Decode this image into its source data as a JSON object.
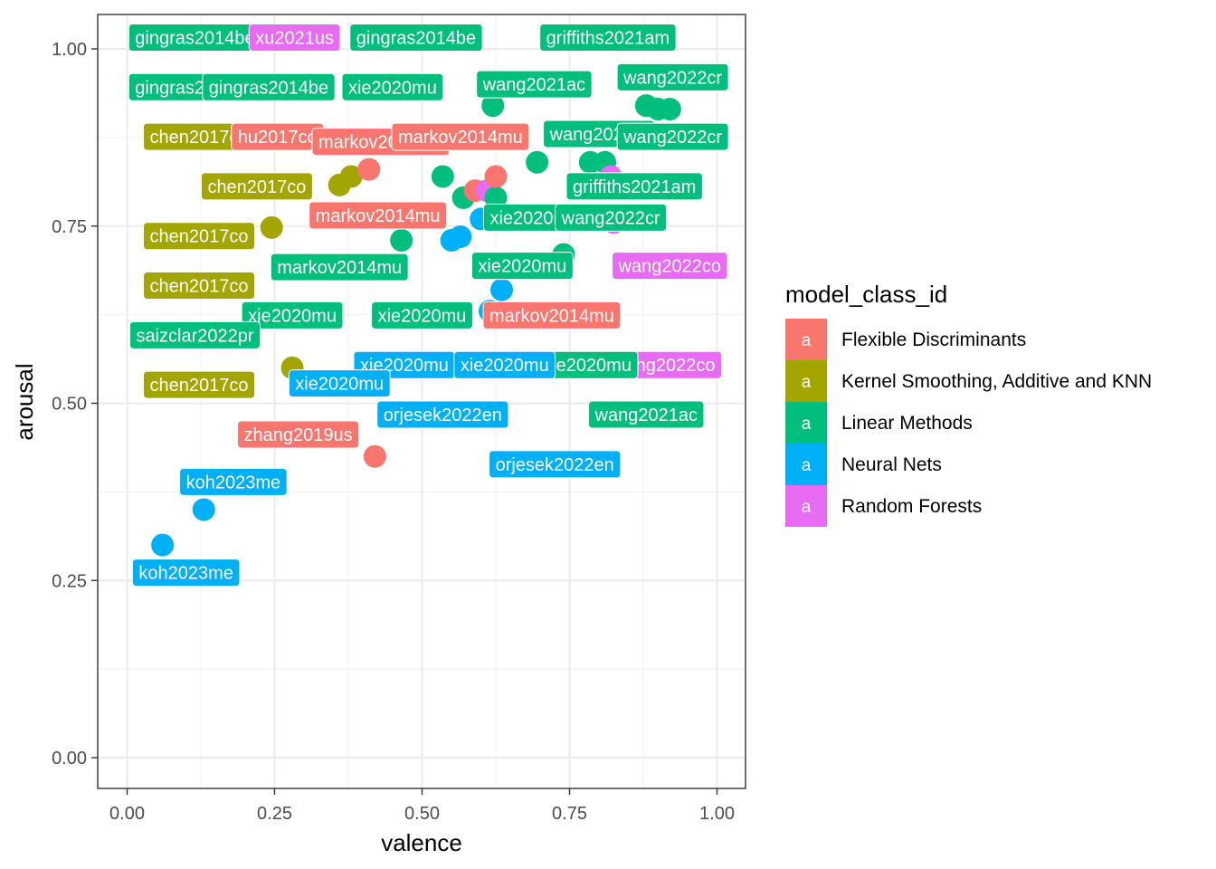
{
  "chart_data": {
    "type": "scatter",
    "xlabel": "valence",
    "ylabel": "arousal",
    "xlim": [
      0,
      1
    ],
    "ylim": [
      0,
      1
    ],
    "xticks": [
      "0.00",
      "0.25",
      "0.50",
      "0.75",
      "1.00"
    ],
    "yticks": [
      "0.00",
      "0.25",
      "0.50",
      "0.75",
      "1.00"
    ],
    "grid": true,
    "legend": {
      "title": "model_class_id",
      "placement": "right",
      "key_glyph": "a",
      "entries": [
        {
          "name": "Flexible Discriminants",
          "color": "#F8766D"
        },
        {
          "name": "Kernel Smoothing, Additive and KNN",
          "color": "#A3A500"
        },
        {
          "name": "Linear Methods",
          "color": "#00BF7D"
        },
        {
          "name": "Neural Nets",
          "color": "#00B0F6"
        },
        {
          "name": "Random Forests",
          "color": "#E76BF3"
        }
      ]
    },
    "points": [
      {
        "x": 0.06,
        "y": 0.3,
        "cls": 3
      },
      {
        "x": 0.13,
        "y": 0.35,
        "cls": 3
      },
      {
        "x": 0.42,
        "y": 0.425,
        "cls": 0
      },
      {
        "x": 0.28,
        "y": 0.55,
        "cls": 1
      },
      {
        "x": 0.245,
        "y": 0.748,
        "cls": 1
      },
      {
        "x": 0.36,
        "y": 0.808,
        "cls": 1
      },
      {
        "x": 0.38,
        "y": 0.82,
        "cls": 1
      },
      {
        "x": 0.41,
        "y": 0.83,
        "cls": 0
      },
      {
        "x": 0.465,
        "y": 0.73,
        "cls": 2
      },
      {
        "x": 0.535,
        "y": 0.82,
        "cls": 2
      },
      {
        "x": 0.55,
        "y": 0.73,
        "cls": 3
      },
      {
        "x": 0.565,
        "y": 0.735,
        "cls": 3
      },
      {
        "x": 0.57,
        "y": 0.79,
        "cls": 2
      },
      {
        "x": 0.6,
        "y": 0.76,
        "cls": 3
      },
      {
        "x": 0.59,
        "y": 0.8,
        "cls": 0
      },
      {
        "x": 0.61,
        "y": 0.8,
        "cls": 4
      },
      {
        "x": 0.625,
        "y": 0.79,
        "cls": 2
      },
      {
        "x": 0.62,
        "y": 0.92,
        "cls": 2
      },
      {
        "x": 0.625,
        "y": 0.82,
        "cls": 0
      },
      {
        "x": 0.615,
        "y": 0.63,
        "cls": 3
      },
      {
        "x": 0.635,
        "y": 0.66,
        "cls": 3
      },
      {
        "x": 0.695,
        "y": 0.84,
        "cls": 2
      },
      {
        "x": 0.74,
        "y": 0.71,
        "cls": 2
      },
      {
        "x": 0.785,
        "y": 0.84,
        "cls": 2
      },
      {
        "x": 0.81,
        "y": 0.84,
        "cls": 2
      },
      {
        "x": 0.82,
        "y": 0.82,
        "cls": 4
      },
      {
        "x": 0.825,
        "y": 0.755,
        "cls": 4
      },
      {
        "x": 0.88,
        "y": 0.92,
        "cls": 2
      },
      {
        "x": 0.9,
        "y": 0.915,
        "cls": 2
      },
      {
        "x": 0.92,
        "y": 0.915,
        "cls": 2
      }
    ],
    "labels": [
      {
        "text": "gingras2014be",
        "x": 0.115,
        "y": 1.016,
        "cls": 2
      },
      {
        "text": "xu2021us",
        "x": 0.284,
        "y": 1.016,
        "cls": 4
      },
      {
        "text": "gingras2014be",
        "x": 0.49,
        "y": 1.016,
        "cls": 2
      },
      {
        "text": "griffiths2021am",
        "x": 0.815,
        "y": 1.016,
        "cls": 2
      },
      {
        "text": "gingras2014be",
        "x": 0.115,
        "y": 0.946,
        "cls": 2
      },
      {
        "text": "gingras2014be",
        "x": 0.24,
        "y": 0.946,
        "cls": 2
      },
      {
        "text": "xie2020mu",
        "x": 0.45,
        "y": 0.946,
        "cls": 2
      },
      {
        "text": "wang2021ac",
        "x": 0.69,
        "y": 0.95,
        "cls": 2
      },
      {
        "text": "wang2022cr",
        "x": 0.925,
        "y": 0.96,
        "cls": 2
      },
      {
        "text": "chen2017co",
        "x": 0.122,
        "y": 0.876,
        "cls": 1
      },
      {
        "text": "hu2017co",
        "x": 0.255,
        "y": 0.876,
        "cls": 0
      },
      {
        "text": "markov2014mu",
        "x": 0.43,
        "y": 0.869,
        "cls": 0
      },
      {
        "text": "markov2014mu",
        "x": 0.565,
        "y": 0.876,
        "cls": 0
      },
      {
        "text": "wang2022cr",
        "x": 0.8,
        "y": 0.88,
        "cls": 2
      },
      {
        "text": "wang2022cr",
        "x": 0.925,
        "y": 0.876,
        "cls": 2
      },
      {
        "text": "chen2017co",
        "x": 0.22,
        "y": 0.806,
        "cls": 1
      },
      {
        "text": "griffiths2021am",
        "x": 0.86,
        "y": 0.806,
        "cls": 2
      },
      {
        "text": "markov2014mu",
        "x": 0.425,
        "y": 0.765,
        "cls": 0
      },
      {
        "text": "xie2020mu",
        "x": 0.69,
        "y": 0.762,
        "cls": 2
      },
      {
        "text": "wang2022cr",
        "x": 0.82,
        "y": 0.762,
        "cls": 2
      },
      {
        "text": "chen2017co",
        "x": 0.122,
        "y": 0.736,
        "cls": 1
      },
      {
        "text": "markov2014mu",
        "x": 0.36,
        "y": 0.692,
        "cls": 2
      },
      {
        "text": "xie2020mu",
        "x": 0.67,
        "y": 0.694,
        "cls": 2
      },
      {
        "text": "wang2022co",
        "x": 0.92,
        "y": 0.694,
        "cls": 4
      },
      {
        "text": "chen2017co",
        "x": 0.122,
        "y": 0.666,
        "cls": 1
      },
      {
        "text": "xie2020mu",
        "x": 0.28,
        "y": 0.624,
        "cls": 2
      },
      {
        "text": "xie2020mu",
        "x": 0.5,
        "y": 0.624,
        "cls": 2
      },
      {
        "text": "markov2014mu",
        "x": 0.72,
        "y": 0.624,
        "cls": 0
      },
      {
        "text": "saizclar2022pr",
        "x": 0.115,
        "y": 0.596,
        "cls": 2
      },
      {
        "text": "wang2022co",
        "x": 0.91,
        "y": 0.554,
        "cls": 4
      },
      {
        "text": "xie2020mu",
        "x": 0.78,
        "y": 0.554,
        "cls": 2
      },
      {
        "text": "xie2020mu",
        "x": 0.47,
        "y": 0.554,
        "cls": 3
      },
      {
        "text": "xie2020mu",
        "x": 0.64,
        "y": 0.554,
        "cls": 3
      },
      {
        "text": "xie2020mu",
        "x": 0.36,
        "y": 0.528,
        "cls": 3
      },
      {
        "text": "chen2017co",
        "x": 0.122,
        "y": 0.526,
        "cls": 1
      },
      {
        "text": "orjesek2022en",
        "x": 0.535,
        "y": 0.484,
        "cls": 3
      },
      {
        "text": "wang2021ac",
        "x": 0.88,
        "y": 0.484,
        "cls": 2
      },
      {
        "text": "zhang2019us",
        "x": 0.29,
        "y": 0.456,
        "cls": 0
      },
      {
        "text": "orjesek2022en",
        "x": 0.725,
        "y": 0.414,
        "cls": 3
      },
      {
        "text": "koh2023me",
        "x": 0.18,
        "y": 0.389,
        "cls": 3
      },
      {
        "text": "koh2023me",
        "x": 0.1,
        "y": 0.261,
        "cls": 3
      }
    ]
  }
}
